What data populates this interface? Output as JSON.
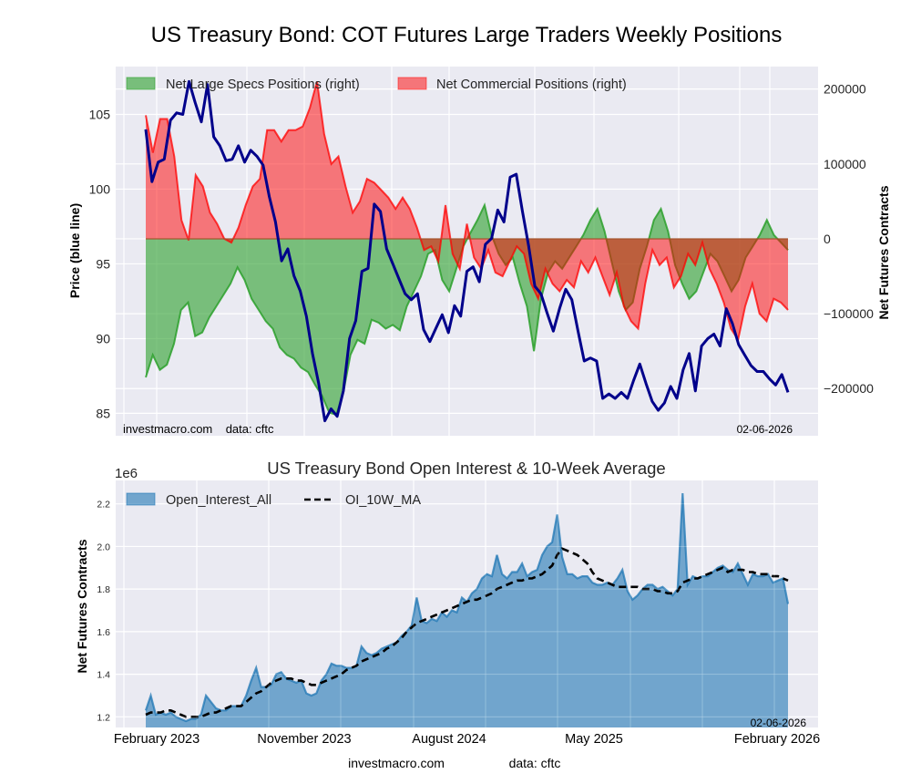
{
  "figure": {
    "footer_site": "investmacro.com",
    "footer_source": "data: cftc"
  },
  "chart_data": [
    {
      "type": "line",
      "title": "US Treasury Bond: COT Futures Large Traders Weekly Positions",
      "ylabel_left": "Price (blue line)",
      "ylabel_right": "Net Futures Contracts",
      "ylim_left": [
        83.5,
        108.2
      ],
      "ylim_right": [
        -263000,
        230000
      ],
      "yticks_left": [
        85,
        90,
        95,
        100,
        105
      ],
      "yticks_right": [
        -200000,
        -100000,
        0,
        100000,
        200000
      ],
      "ytick_labels_right": [
        "−200000",
        "−100000",
        "0",
        "100000",
        "200000"
      ],
      "grid": true,
      "legend_location": "top-left",
      "watermark": "investmacro.com    data: cftc",
      "date_stamp": "02-06-2026",
      "x_start": "2023-01",
      "x_end": "2026-02-06",
      "series": [
        {
          "name": "Net Large Specs Positions (right)",
          "kind": "area",
          "color": "#2ca02c",
          "values": [
            -185000,
            -155000,
            -175000,
            -168000,
            -140000,
            -95000,
            -85000,
            -130000,
            -125000,
            -105000,
            -90000,
            -75000,
            -60000,
            -38000,
            -55000,
            -80000,
            -95000,
            -110000,
            -120000,
            -145000,
            -155000,
            -160000,
            -172000,
            -178000,
            -195000,
            -210000,
            -232000,
            -235000,
            -205000,
            -155000,
            -135000,
            -140000,
            -108000,
            -112000,
            -120000,
            -115000,
            -122000,
            -90000,
            -70000,
            -50000,
            -20000,
            -15000,
            -55000,
            -70000,
            -40000,
            -10000,
            8000,
            25000,
            45000,
            5000,
            -20000,
            -35000,
            -25000,
            -60000,
            -90000,
            -150000,
            -80000,
            -45000,
            -30000,
            -40000,
            -25000,
            -10000,
            5000,
            25000,
            40000,
            10000,
            -30000,
            -70000,
            -95000,
            -85000,
            -40000,
            -10000,
            25000,
            40000,
            10000,
            -35000,
            -60000,
            -80000,
            -70000,
            -45000,
            -20000,
            -30000,
            -50000,
            -70000,
            -55000,
            -25000,
            -10000,
            5000,
            25000,
            5000,
            -5000,
            -15000
          ],
          "note": "values sampled approx. weekly-pairs across the period"
        },
        {
          "name": "Net Commercial Positions (right)",
          "kind": "area",
          "color": "#ff0000",
          "values": [
            165000,
            115000,
            160000,
            160000,
            110000,
            25000,
            -2000,
            85000,
            70000,
            35000,
            20000,
            0,
            -5000,
            15000,
            45000,
            70000,
            80000,
            145000,
            145000,
            130000,
            145000,
            145000,
            150000,
            175000,
            210000,
            140000,
            100000,
            110000,
            70000,
            35000,
            50000,
            80000,
            75000,
            65000,
            55000,
            40000,
            55000,
            40000,
            15000,
            -15000,
            -10000,
            -30000,
            45000,
            -20000,
            -40000,
            20000,
            -25000,
            -40000,
            -15000,
            -45000,
            -50000,
            -30000,
            -10000,
            -20000,
            -60000,
            -80000,
            -40000,
            -60000,
            -70000,
            -55000,
            -65000,
            -30000,
            -45000,
            -25000,
            -50000,
            -75000,
            -45000,
            -90000,
            -110000,
            -120000,
            -60000,
            -15000,
            -35000,
            -25000,
            -65000,
            -50000,
            -20000,
            -35000,
            -5000,
            -40000,
            -60000,
            -85000,
            -120000,
            -135000,
            -90000,
            -60000,
            -100000,
            -110000,
            -80000,
            -85000,
            -95000
          ],
          "note": "values sampled approx. weekly-pairs across the period"
        },
        {
          "name": "Price (blue line)",
          "kind": "line",
          "axis": "left",
          "color": "#00008b",
          "values": [
            104.0,
            100.5,
            101.8,
            102.0,
            104.6,
            105.1,
            105.0,
            107.2,
            105.8,
            104.5,
            107.0,
            103.5,
            102.9,
            101.9,
            102.0,
            102.9,
            101.8,
            102.6,
            102.2,
            101.6,
            99.5,
            97.8,
            95.2,
            96.0,
            94.2,
            93.2,
            91.5,
            89.0,
            87.0,
            84.5,
            85.3,
            84.8,
            86.5,
            90.0,
            91.2,
            94.5,
            94.7,
            99.0,
            98.5,
            96.0,
            95.0,
            94.0,
            93.0,
            92.6,
            93.0,
            90.6,
            89.8,
            90.7,
            91.6,
            90.4,
            92.2,
            91.5,
            94.5,
            94.8,
            93.8,
            96.3,
            96.7,
            98.6,
            97.8,
            100.8,
            101.0,
            98.5,
            96.2,
            93.5,
            93.0,
            91.7,
            90.5,
            92.0,
            93.3,
            92.6,
            90.5,
            88.5,
            88.7,
            88.5,
            86.0,
            86.3,
            86.0,
            86.4,
            86.0,
            87.2,
            88.3,
            87.0,
            85.8,
            85.2,
            85.7,
            86.8,
            86.0,
            87.9,
            89.0,
            86.5,
            89.5,
            90.0,
            90.3,
            89.5,
            92.0,
            91.0,
            89.6,
            88.9,
            88.2,
            87.8,
            87.8,
            87.3,
            86.9,
            87.6,
            86.4
          ],
          "note": "weekly closes, early-2023 to Feb 2026"
        }
      ]
    },
    {
      "type": "area",
      "title": "US Treasury Bond Open Interest & 10-Week Average",
      "ylabel": "Net Futures Contracts",
      "offset_label": "1e6",
      "ylim": [
        1.15,
        2.31
      ],
      "yticks": [
        1.2,
        1.4,
        1.6,
        1.8,
        2.0,
        2.2
      ],
      "xtick_labels": [
        "February 2023",
        "November 2023",
        "August 2024",
        "May 2025",
        "February 2026"
      ],
      "grid": true,
      "legend_location": "top-left",
      "date_stamp": "02-06-2026",
      "series": [
        {
          "name": "Open_Interest_All",
          "kind": "area",
          "color": "#1f77b4",
          "values": [
            1.23,
            1.3,
            1.21,
            1.22,
            1.21,
            1.22,
            1.2,
            1.19,
            1.18,
            1.19,
            1.19,
            1.21,
            1.3,
            1.27,
            1.24,
            1.23,
            1.23,
            1.25,
            1.25,
            1.25,
            1.3,
            1.37,
            1.43,
            1.34,
            1.34,
            1.35,
            1.4,
            1.41,
            1.38,
            1.37,
            1.36,
            1.37,
            1.31,
            1.3,
            1.31,
            1.37,
            1.4,
            1.45,
            1.44,
            1.44,
            1.43,
            1.43,
            1.44,
            1.53,
            1.5,
            1.49,
            1.5,
            1.52,
            1.53,
            1.54,
            1.55,
            1.58,
            1.6,
            1.63,
            1.76,
            1.65,
            1.64,
            1.66,
            1.65,
            1.69,
            1.67,
            1.7,
            1.69,
            1.76,
            1.74,
            1.78,
            1.8,
            1.85,
            1.87,
            1.86,
            1.96,
            1.87,
            1.85,
            1.88,
            1.88,
            1.92,
            1.86,
            1.88,
            1.89,
            1.96,
            2.0,
            2.02,
            2.15,
            1.95,
            1.87,
            1.87,
            1.85,
            1.86,
            1.86,
            1.83,
            1.82,
            1.82,
            1.83,
            1.82,
            1.85,
            1.89,
            1.79,
            1.75,
            1.77,
            1.8,
            1.82,
            1.82,
            1.8,
            1.81,
            1.79,
            1.77,
            1.8,
            2.25,
            1.82,
            1.86,
            1.85,
            1.86,
            1.86,
            1.88,
            1.9,
            1.91,
            1.89,
            1.88,
            1.92,
            1.87,
            1.82,
            1.87,
            1.86,
            1.86,
            1.87,
            1.83,
            1.84,
            1.85,
            1.73
          ]
        },
        {
          "name": "OI_10W_MA",
          "kind": "line",
          "style": "dashed",
          "color": "#000000",
          "values": [
            1.21,
            1.22,
            1.22,
            1.22,
            1.23,
            1.23,
            1.22,
            1.21,
            1.2,
            1.2,
            1.2,
            1.2,
            1.21,
            1.22,
            1.22,
            1.23,
            1.24,
            1.25,
            1.25,
            1.25,
            1.27,
            1.29,
            1.31,
            1.32,
            1.34,
            1.36,
            1.37,
            1.38,
            1.38,
            1.38,
            1.37,
            1.37,
            1.36,
            1.35,
            1.35,
            1.36,
            1.37,
            1.38,
            1.39,
            1.4,
            1.42,
            1.43,
            1.44,
            1.46,
            1.47,
            1.48,
            1.49,
            1.5,
            1.52,
            1.53,
            1.55,
            1.57,
            1.6,
            1.62,
            1.64,
            1.65,
            1.66,
            1.67,
            1.68,
            1.69,
            1.7,
            1.71,
            1.72,
            1.73,
            1.74,
            1.75,
            1.75,
            1.76,
            1.77,
            1.78,
            1.8,
            1.81,
            1.82,
            1.83,
            1.84,
            1.84,
            1.85,
            1.85,
            1.86,
            1.87,
            1.89,
            1.91,
            1.96,
            1.99,
            1.98,
            1.97,
            1.96,
            1.94,
            1.92,
            1.88,
            1.85,
            1.84,
            1.83,
            1.82,
            1.81,
            1.81,
            1.81,
            1.81,
            1.81,
            1.8,
            1.8,
            1.8,
            1.79,
            1.79,
            1.78,
            1.78,
            1.79,
            1.83,
            1.84,
            1.85,
            1.85,
            1.86,
            1.87,
            1.88,
            1.89,
            1.9,
            1.88,
            1.89,
            1.89,
            1.89,
            1.88,
            1.88,
            1.87,
            1.87,
            1.87,
            1.86,
            1.86,
            1.85,
            1.84
          ]
        }
      ]
    }
  ]
}
